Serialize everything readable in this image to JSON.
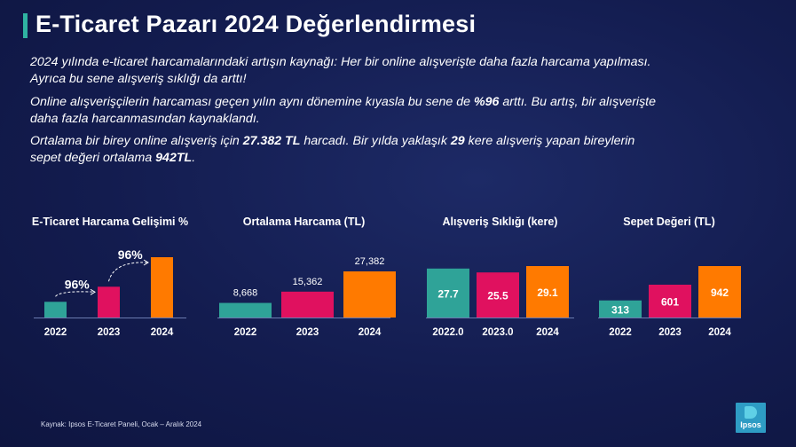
{
  "title": "E-Ticaret Pazarı 2024 Değerlendirmesi",
  "paragraphs": [
    {
      "line1": [
        {
          "t": "2024 yılında e-ticaret harcamalarındaki artışın kaynağı: Her bir online alışverişte daha fazla harcama yapılması.",
          "b": false
        }
      ],
      "line2": [
        {
          "t": "Ayrıca bu sene alışveriş sıklığı da arttı!",
          "b": false
        }
      ]
    },
    {
      "line1": [
        {
          "t": "Online alışverişçilerin harcaması geçen yılın aynı dönemine kıyasla bu sene de ",
          "b": false
        },
        {
          "t": "%96",
          "b": true
        },
        {
          "t": " arttı. Bu artış, bir alışverişte",
          "b": false
        }
      ],
      "line2": [
        {
          "t": "daha fazla harcanmasından kaynaklandı.",
          "b": false
        }
      ]
    },
    {
      "line1": [
        {
          "t": "Ortalama bir birey online alışveriş için ",
          "b": false
        },
        {
          "t": "27.382 TL",
          "b": true
        },
        {
          "t": " harcadı. Bir yılda yaklaşık ",
          "b": false
        },
        {
          "t": "29",
          "b": true
        },
        {
          "t": " kere alışveriş yapan bireylerin",
          "b": false
        }
      ],
      "line2": [
        {
          "t": "sepet değeri ortalama ",
          "b": false
        },
        {
          "t": "942TL",
          "b": true
        },
        {
          "t": ".",
          "b": false
        }
      ]
    }
  ],
  "colors": {
    "teal": "#2fa398",
    "pink": "#e0115f",
    "orange": "#ff7a00",
    "bg": "#131c4f",
    "title_accent": "#2fb3a2"
  },
  "chart_data": [
    {
      "type": "bar",
      "title": "E-Ticaret Harcama Gelişimi %",
      "categories": [
        "2022",
        "2023",
        "2024"
      ],
      "values": [
        1.0,
        1.96,
        3.84
      ],
      "value_note": "relative index; bars show growth, no data labels printed",
      "data_labels": [],
      "annotations": [
        {
          "text": "96%",
          "between": [
            "2022",
            "2023"
          ]
        },
        {
          "text": "96%",
          "between": [
            "2023",
            "2024"
          ]
        }
      ],
      "ylim": [
        0,
        3.84
      ]
    },
    {
      "type": "bar",
      "title": "Ortalama Harcama (TL)",
      "categories": [
        "2022",
        "2023",
        "2024"
      ],
      "values": [
        8668,
        15362,
        27382
      ],
      "data_labels": [
        "8,668",
        "15,362",
        "27,382"
      ],
      "label_position": "above",
      "ylim": [
        0,
        27382
      ]
    },
    {
      "type": "bar",
      "title": "Alışveriş Sıklığı (kere)",
      "categories": [
        "2022.0",
        "2023.0",
        "2024"
      ],
      "values": [
        27.7,
        25.5,
        29.1
      ],
      "data_labels": [
        "27.7",
        "25.5",
        "29.1"
      ],
      "label_position": "inside",
      "ylim": [
        0,
        29.1
      ]
    },
    {
      "type": "bar",
      "title": "Sepet Değeri (TL)",
      "categories": [
        "2022",
        "2023",
        "2024"
      ],
      "values": [
        313,
        601,
        942
      ],
      "data_labels": [
        "313",
        "601",
        "942"
      ],
      "label_position": "inside",
      "ylim": [
        0,
        942
      ]
    }
  ],
  "source": "Kaynak: Ipsos E-Ticaret Paneli, Ocak – Aralık 2024",
  "logo": {
    "text": "Ipsos",
    "icon": "ipsos-logo-icon"
  }
}
